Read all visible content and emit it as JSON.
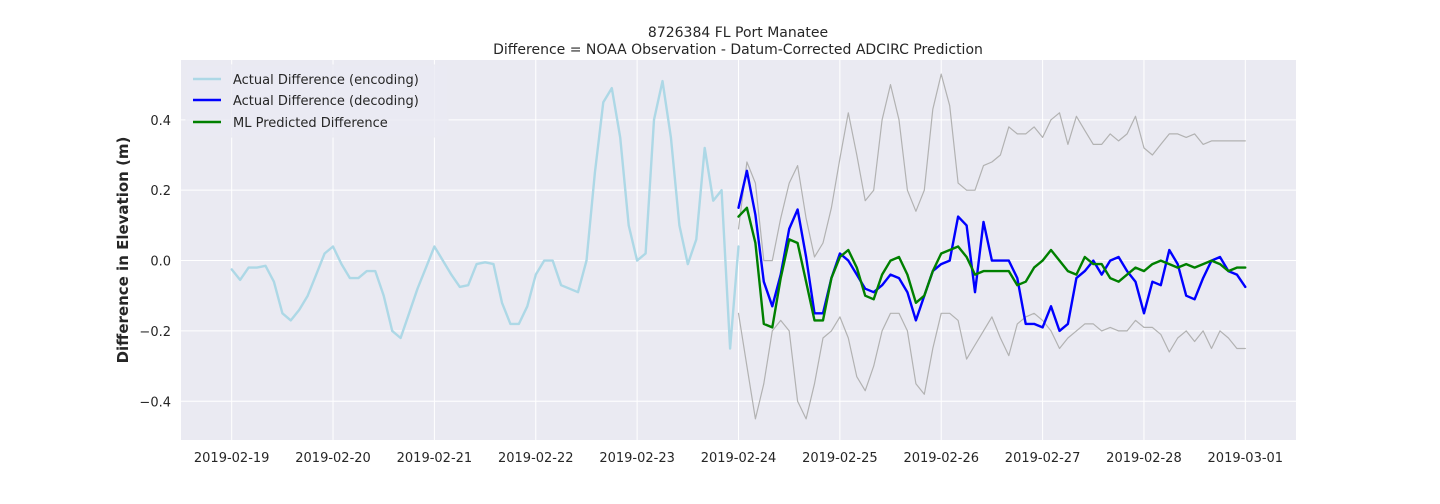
{
  "chart_data": {
    "type": "line",
    "title": "8726384 FL Port Manatee",
    "subtitle": "Difference = NOAA Observation - Datum-Corrected ADCIRC Prediction",
    "xlabel": "",
    "ylabel": "Difference in Elevation (m)",
    "x_ticks": [
      "2019-02-19",
      "2019-02-20",
      "2019-02-21",
      "2019-02-22",
      "2019-02-23",
      "2019-02-24",
      "2019-02-25",
      "2019-02-26",
      "2019-02-27",
      "2019-02-28",
      "2019-03-01"
    ],
    "y_ticks": [
      -0.4,
      -0.2,
      0.0,
      0.2,
      0.4
    ],
    "y_tick_labels": [
      "−0.4",
      "−0.2",
      "0.0",
      "0.2",
      "0.4"
    ],
    "xlim": [
      "2019-02-18 12:00",
      "2019-03-01 12:00"
    ],
    "ylim": [
      -0.51,
      0.57
    ],
    "grid": true,
    "legend_position": "upper-left",
    "background": "#eaeaf2",
    "series": [
      {
        "name": "Actual Difference (encoding)",
        "color": "#add8e6",
        "x": [
          "2019-02-19 00:00",
          "2019-02-19 02:00",
          "2019-02-19 04:00",
          "2019-02-19 06:00",
          "2019-02-19 08:00",
          "2019-02-19 10:00",
          "2019-02-19 12:00",
          "2019-02-19 14:00",
          "2019-02-19 16:00",
          "2019-02-19 18:00",
          "2019-02-19 20:00",
          "2019-02-19 22:00",
          "2019-02-20 00:00",
          "2019-02-20 02:00",
          "2019-02-20 04:00",
          "2019-02-20 06:00",
          "2019-02-20 08:00",
          "2019-02-20 10:00",
          "2019-02-20 12:00",
          "2019-02-20 14:00",
          "2019-02-20 16:00",
          "2019-02-20 18:00",
          "2019-02-20 20:00",
          "2019-02-20 22:00",
          "2019-02-21 00:00",
          "2019-02-21 02:00",
          "2019-02-21 04:00",
          "2019-02-21 06:00",
          "2019-02-21 08:00",
          "2019-02-21 10:00",
          "2019-02-21 12:00",
          "2019-02-21 14:00",
          "2019-02-21 16:00",
          "2019-02-21 18:00",
          "2019-02-21 20:00",
          "2019-02-21 22:00",
          "2019-02-22 00:00",
          "2019-02-22 02:00",
          "2019-02-22 04:00",
          "2019-02-22 06:00",
          "2019-02-22 08:00",
          "2019-02-22 10:00",
          "2019-02-22 12:00",
          "2019-02-22 14:00",
          "2019-02-22 16:00",
          "2019-02-22 18:00",
          "2019-02-22 20:00",
          "2019-02-22 22:00",
          "2019-02-23 00:00",
          "2019-02-23 02:00",
          "2019-02-23 04:00",
          "2019-02-23 06:00",
          "2019-02-23 08:00",
          "2019-02-23 10:00",
          "2019-02-23 12:00",
          "2019-02-23 14:00",
          "2019-02-23 16:00",
          "2019-02-23 18:00",
          "2019-02-23 20:00",
          "2019-02-23 22:00",
          "2019-02-24 00:00"
        ],
        "y": [
          -0.025,
          -0.055,
          -0.02,
          -0.02,
          -0.015,
          -0.06,
          -0.15,
          -0.17,
          -0.14,
          -0.1,
          -0.04,
          0.02,
          0.04,
          -0.01,
          -0.05,
          -0.05,
          -0.03,
          -0.03,
          -0.1,
          -0.2,
          -0.22,
          -0.15,
          -0.08,
          -0.02,
          0.04,
          0.0,
          -0.04,
          -0.075,
          -0.07,
          -0.01,
          -0.005,
          -0.01,
          -0.12,
          -0.18,
          -0.18,
          -0.13,
          -0.04,
          0.0,
          0.0,
          -0.07,
          -0.08,
          -0.09,
          0.0,
          0.25,
          0.45,
          0.49,
          0.35,
          0.1,
          0.0,
          0.02,
          0.4,
          0.51,
          0.35,
          0.1,
          -0.01,
          0.06,
          0.32,
          0.17,
          0.2,
          -0.25,
          0.04
        ]
      },
      {
        "name": "Actual Difference (decoding)",
        "color": "#0000ff",
        "x": [
          "2019-02-24 00:00",
          "2019-02-24 02:00",
          "2019-02-24 04:00",
          "2019-02-24 06:00",
          "2019-02-24 08:00",
          "2019-02-24 10:00",
          "2019-02-24 12:00",
          "2019-02-24 14:00",
          "2019-02-24 16:00",
          "2019-02-24 18:00",
          "2019-02-24 20:00",
          "2019-02-24 22:00",
          "2019-02-25 00:00",
          "2019-02-25 02:00",
          "2019-02-25 04:00",
          "2019-02-25 06:00",
          "2019-02-25 08:00",
          "2019-02-25 10:00",
          "2019-02-25 12:00",
          "2019-02-25 14:00",
          "2019-02-25 16:00",
          "2019-02-25 18:00",
          "2019-02-25 20:00",
          "2019-02-25 22:00",
          "2019-02-26 00:00",
          "2019-02-26 02:00",
          "2019-02-26 04:00",
          "2019-02-26 06:00",
          "2019-02-26 08:00",
          "2019-02-26 10:00",
          "2019-02-26 12:00",
          "2019-02-26 14:00",
          "2019-02-26 16:00",
          "2019-02-26 18:00",
          "2019-02-26 20:00",
          "2019-02-26 22:00",
          "2019-02-27 00:00",
          "2019-02-27 02:00",
          "2019-02-27 04:00",
          "2019-02-27 06:00",
          "2019-02-27 08:00",
          "2019-02-27 10:00",
          "2019-02-27 12:00",
          "2019-02-27 14:00",
          "2019-02-27 16:00",
          "2019-02-27 18:00",
          "2019-02-27 20:00",
          "2019-02-27 22:00",
          "2019-02-28 00:00",
          "2019-02-28 02:00",
          "2019-02-28 04:00",
          "2019-02-28 06:00",
          "2019-02-28 08:00",
          "2019-02-28 10:00",
          "2019-02-28 12:00",
          "2019-02-28 14:00",
          "2019-02-28 16:00",
          "2019-02-28 18:00",
          "2019-02-28 20:00",
          "2019-02-28 22:00",
          "2019-03-01 00:00"
        ],
        "y": [
          0.15,
          0.255,
          0.13,
          -0.06,
          -0.13,
          -0.04,
          0.09,
          0.145,
          0.01,
          -0.15,
          -0.15,
          -0.05,
          0.02,
          0.0,
          -0.04,
          -0.08,
          -0.09,
          -0.07,
          -0.04,
          -0.05,
          -0.09,
          -0.17,
          -0.1,
          -0.03,
          -0.01,
          0.0,
          0.125,
          0.1,
          -0.09,
          0.11,
          0.0,
          0.0,
          0.0,
          -0.05,
          -0.18,
          -0.18,
          -0.19,
          -0.13,
          -0.2,
          -0.18,
          -0.05,
          -0.03,
          0.0,
          -0.04,
          0.0,
          0.01,
          -0.03,
          -0.06,
          -0.15,
          -0.06,
          -0.07,
          0.03,
          -0.01,
          -0.1,
          -0.11,
          -0.05,
          0.0,
          0.01,
          -0.03,
          -0.04,
          -0.075
        ]
      },
      {
        "name": "ML Predicted Difference",
        "color": "#008000",
        "x": [
          "2019-02-24 00:00",
          "2019-02-24 02:00",
          "2019-02-24 04:00",
          "2019-02-24 06:00",
          "2019-02-24 08:00",
          "2019-02-24 10:00",
          "2019-02-24 12:00",
          "2019-02-24 14:00",
          "2019-02-24 16:00",
          "2019-02-24 18:00",
          "2019-02-24 20:00",
          "2019-02-24 22:00",
          "2019-02-25 00:00",
          "2019-02-25 02:00",
          "2019-02-25 04:00",
          "2019-02-25 06:00",
          "2019-02-25 08:00",
          "2019-02-25 10:00",
          "2019-02-25 12:00",
          "2019-02-25 14:00",
          "2019-02-25 16:00",
          "2019-02-25 18:00",
          "2019-02-25 20:00",
          "2019-02-25 22:00",
          "2019-02-26 00:00",
          "2019-02-26 02:00",
          "2019-02-26 04:00",
          "2019-02-26 06:00",
          "2019-02-26 08:00",
          "2019-02-26 10:00",
          "2019-02-26 12:00",
          "2019-02-26 14:00",
          "2019-02-26 16:00",
          "2019-02-26 18:00",
          "2019-02-26 20:00",
          "2019-02-26 22:00",
          "2019-02-27 00:00",
          "2019-02-27 02:00",
          "2019-02-27 04:00",
          "2019-02-27 06:00",
          "2019-02-27 08:00",
          "2019-02-27 10:00",
          "2019-02-27 12:00",
          "2019-02-27 14:00",
          "2019-02-27 16:00",
          "2019-02-27 18:00",
          "2019-02-27 20:00",
          "2019-02-27 22:00",
          "2019-02-28 00:00",
          "2019-02-28 02:00",
          "2019-02-28 04:00",
          "2019-02-28 06:00",
          "2019-02-28 08:00",
          "2019-02-28 10:00",
          "2019-02-28 12:00",
          "2019-02-28 14:00",
          "2019-02-28 16:00",
          "2019-02-28 18:00",
          "2019-02-28 20:00",
          "2019-02-28 22:00",
          "2019-03-01 00:00"
        ],
        "y": [
          0.125,
          0.15,
          0.05,
          -0.18,
          -0.19,
          -0.05,
          0.06,
          0.05,
          -0.06,
          -0.17,
          -0.17,
          -0.05,
          0.01,
          0.03,
          -0.02,
          -0.1,
          -0.11,
          -0.04,
          0.0,
          0.01,
          -0.04,
          -0.12,
          -0.1,
          -0.03,
          0.02,
          0.03,
          0.04,
          0.01,
          -0.04,
          -0.03,
          -0.03,
          -0.03,
          -0.03,
          -0.07,
          -0.06,
          -0.02,
          0.0,
          0.03,
          0.0,
          -0.03,
          -0.04,
          0.01,
          -0.01,
          -0.01,
          -0.05,
          -0.06,
          -0.04,
          -0.02,
          -0.03,
          -0.01,
          0.0,
          -0.01,
          -0.02,
          -0.01,
          -0.02,
          -0.01,
          0.0,
          -0.01,
          -0.03,
          -0.02,
          -0.02
        ]
      },
      {
        "name": "",
        "color": "#b2b2b2",
        "x": [
          "2019-02-24 00:00",
          "2019-02-24 02:00",
          "2019-02-24 04:00",
          "2019-02-24 06:00",
          "2019-02-24 08:00",
          "2019-02-24 10:00",
          "2019-02-24 12:00",
          "2019-02-24 14:00",
          "2019-02-24 16:00",
          "2019-02-24 18:00",
          "2019-02-24 20:00",
          "2019-02-24 22:00",
          "2019-02-25 00:00",
          "2019-02-25 02:00",
          "2019-02-25 04:00",
          "2019-02-25 06:00",
          "2019-02-25 08:00",
          "2019-02-25 10:00",
          "2019-02-25 12:00",
          "2019-02-25 14:00",
          "2019-02-25 16:00",
          "2019-02-25 18:00",
          "2019-02-25 20:00",
          "2019-02-25 22:00",
          "2019-02-26 00:00",
          "2019-02-26 02:00",
          "2019-02-26 04:00",
          "2019-02-26 06:00",
          "2019-02-26 08:00",
          "2019-02-26 10:00",
          "2019-02-26 12:00",
          "2019-02-26 14:00",
          "2019-02-26 16:00",
          "2019-02-26 18:00",
          "2019-02-26 20:00",
          "2019-02-26 22:00",
          "2019-02-27 00:00",
          "2019-02-27 02:00",
          "2019-02-27 04:00",
          "2019-02-27 06:00",
          "2019-02-27 08:00",
          "2019-02-27 10:00",
          "2019-02-27 12:00",
          "2019-02-27 14:00",
          "2019-02-27 16:00",
          "2019-02-27 18:00",
          "2019-02-27 20:00",
          "2019-02-27 22:00",
          "2019-02-28 00:00",
          "2019-02-28 02:00",
          "2019-02-28 04:00",
          "2019-02-28 06:00",
          "2019-02-28 08:00",
          "2019-02-28 10:00",
          "2019-02-28 12:00",
          "2019-02-28 14:00",
          "2019-02-28 16:00",
          "2019-02-28 18:00",
          "2019-02-28 20:00",
          "2019-02-28 22:00",
          "2019-03-01 00:00"
        ],
        "y": [
          0.09,
          0.28,
          0.22,
          0.0,
          0.0,
          0.12,
          0.22,
          0.27,
          0.12,
          0.01,
          0.05,
          0.15,
          0.29,
          0.42,
          0.3,
          0.17,
          0.2,
          0.4,
          0.5,
          0.4,
          0.2,
          0.14,
          0.2,
          0.43,
          0.53,
          0.44,
          0.22,
          0.2,
          0.2,
          0.27,
          0.28,
          0.3,
          0.38,
          0.36,
          0.36,
          0.38,
          0.35,
          0.4,
          0.42,
          0.33,
          0.41,
          0.37,
          0.33,
          0.33,
          0.36,
          0.34,
          0.36,
          0.41,
          0.32,
          0.3,
          0.33,
          0.36,
          0.36,
          0.35,
          0.36,
          0.33,
          0.34,
          0.34,
          0.34,
          0.34,
          0.34
        ]
      },
      {
        "name": "",
        "color": "#b2b2b2",
        "x": [
          "2019-02-24 00:00",
          "2019-02-24 02:00",
          "2019-02-24 04:00",
          "2019-02-24 06:00",
          "2019-02-24 08:00",
          "2019-02-24 10:00",
          "2019-02-24 12:00",
          "2019-02-24 14:00",
          "2019-02-24 16:00",
          "2019-02-24 18:00",
          "2019-02-24 20:00",
          "2019-02-24 22:00",
          "2019-02-25 00:00",
          "2019-02-25 02:00",
          "2019-02-25 04:00",
          "2019-02-25 06:00",
          "2019-02-25 08:00",
          "2019-02-25 10:00",
          "2019-02-25 12:00",
          "2019-02-25 14:00",
          "2019-02-25 16:00",
          "2019-02-25 18:00",
          "2019-02-25 20:00",
          "2019-02-25 22:00",
          "2019-02-26 00:00",
          "2019-02-26 02:00",
          "2019-02-26 04:00",
          "2019-02-26 06:00",
          "2019-02-26 08:00",
          "2019-02-26 10:00",
          "2019-02-26 12:00",
          "2019-02-26 14:00",
          "2019-02-26 16:00",
          "2019-02-26 18:00",
          "2019-02-26 20:00",
          "2019-02-26 22:00",
          "2019-02-27 00:00",
          "2019-02-27 02:00",
          "2019-02-27 04:00",
          "2019-02-27 06:00",
          "2019-02-27 08:00",
          "2019-02-27 10:00",
          "2019-02-27 12:00",
          "2019-02-27 14:00",
          "2019-02-27 16:00",
          "2019-02-27 18:00",
          "2019-02-27 20:00",
          "2019-02-27 22:00",
          "2019-02-28 00:00",
          "2019-02-28 02:00",
          "2019-02-28 04:00",
          "2019-02-28 06:00",
          "2019-02-28 08:00",
          "2019-02-28 10:00",
          "2019-02-28 12:00",
          "2019-02-28 14:00",
          "2019-02-28 16:00",
          "2019-02-28 18:00",
          "2019-02-28 20:00",
          "2019-02-28 22:00",
          "2019-03-01 00:00"
        ],
        "y": [
          -0.15,
          -0.3,
          -0.45,
          -0.35,
          -0.2,
          -0.17,
          -0.2,
          -0.4,
          -0.45,
          -0.35,
          -0.22,
          -0.2,
          -0.16,
          -0.22,
          -0.33,
          -0.37,
          -0.3,
          -0.2,
          -0.15,
          -0.15,
          -0.2,
          -0.35,
          -0.38,
          -0.25,
          -0.15,
          -0.15,
          -0.17,
          -0.28,
          -0.24,
          -0.2,
          -0.16,
          -0.22,
          -0.27,
          -0.18,
          -0.16,
          -0.15,
          -0.17,
          -0.2,
          -0.25,
          -0.22,
          -0.2,
          -0.18,
          -0.18,
          -0.2,
          -0.19,
          -0.2,
          -0.2,
          -0.17,
          -0.19,
          -0.19,
          -0.21,
          -0.26,
          -0.22,
          -0.2,
          -0.23,
          -0.2,
          -0.25,
          -0.2,
          -0.22,
          -0.25,
          -0.25
        ]
      }
    ]
  }
}
